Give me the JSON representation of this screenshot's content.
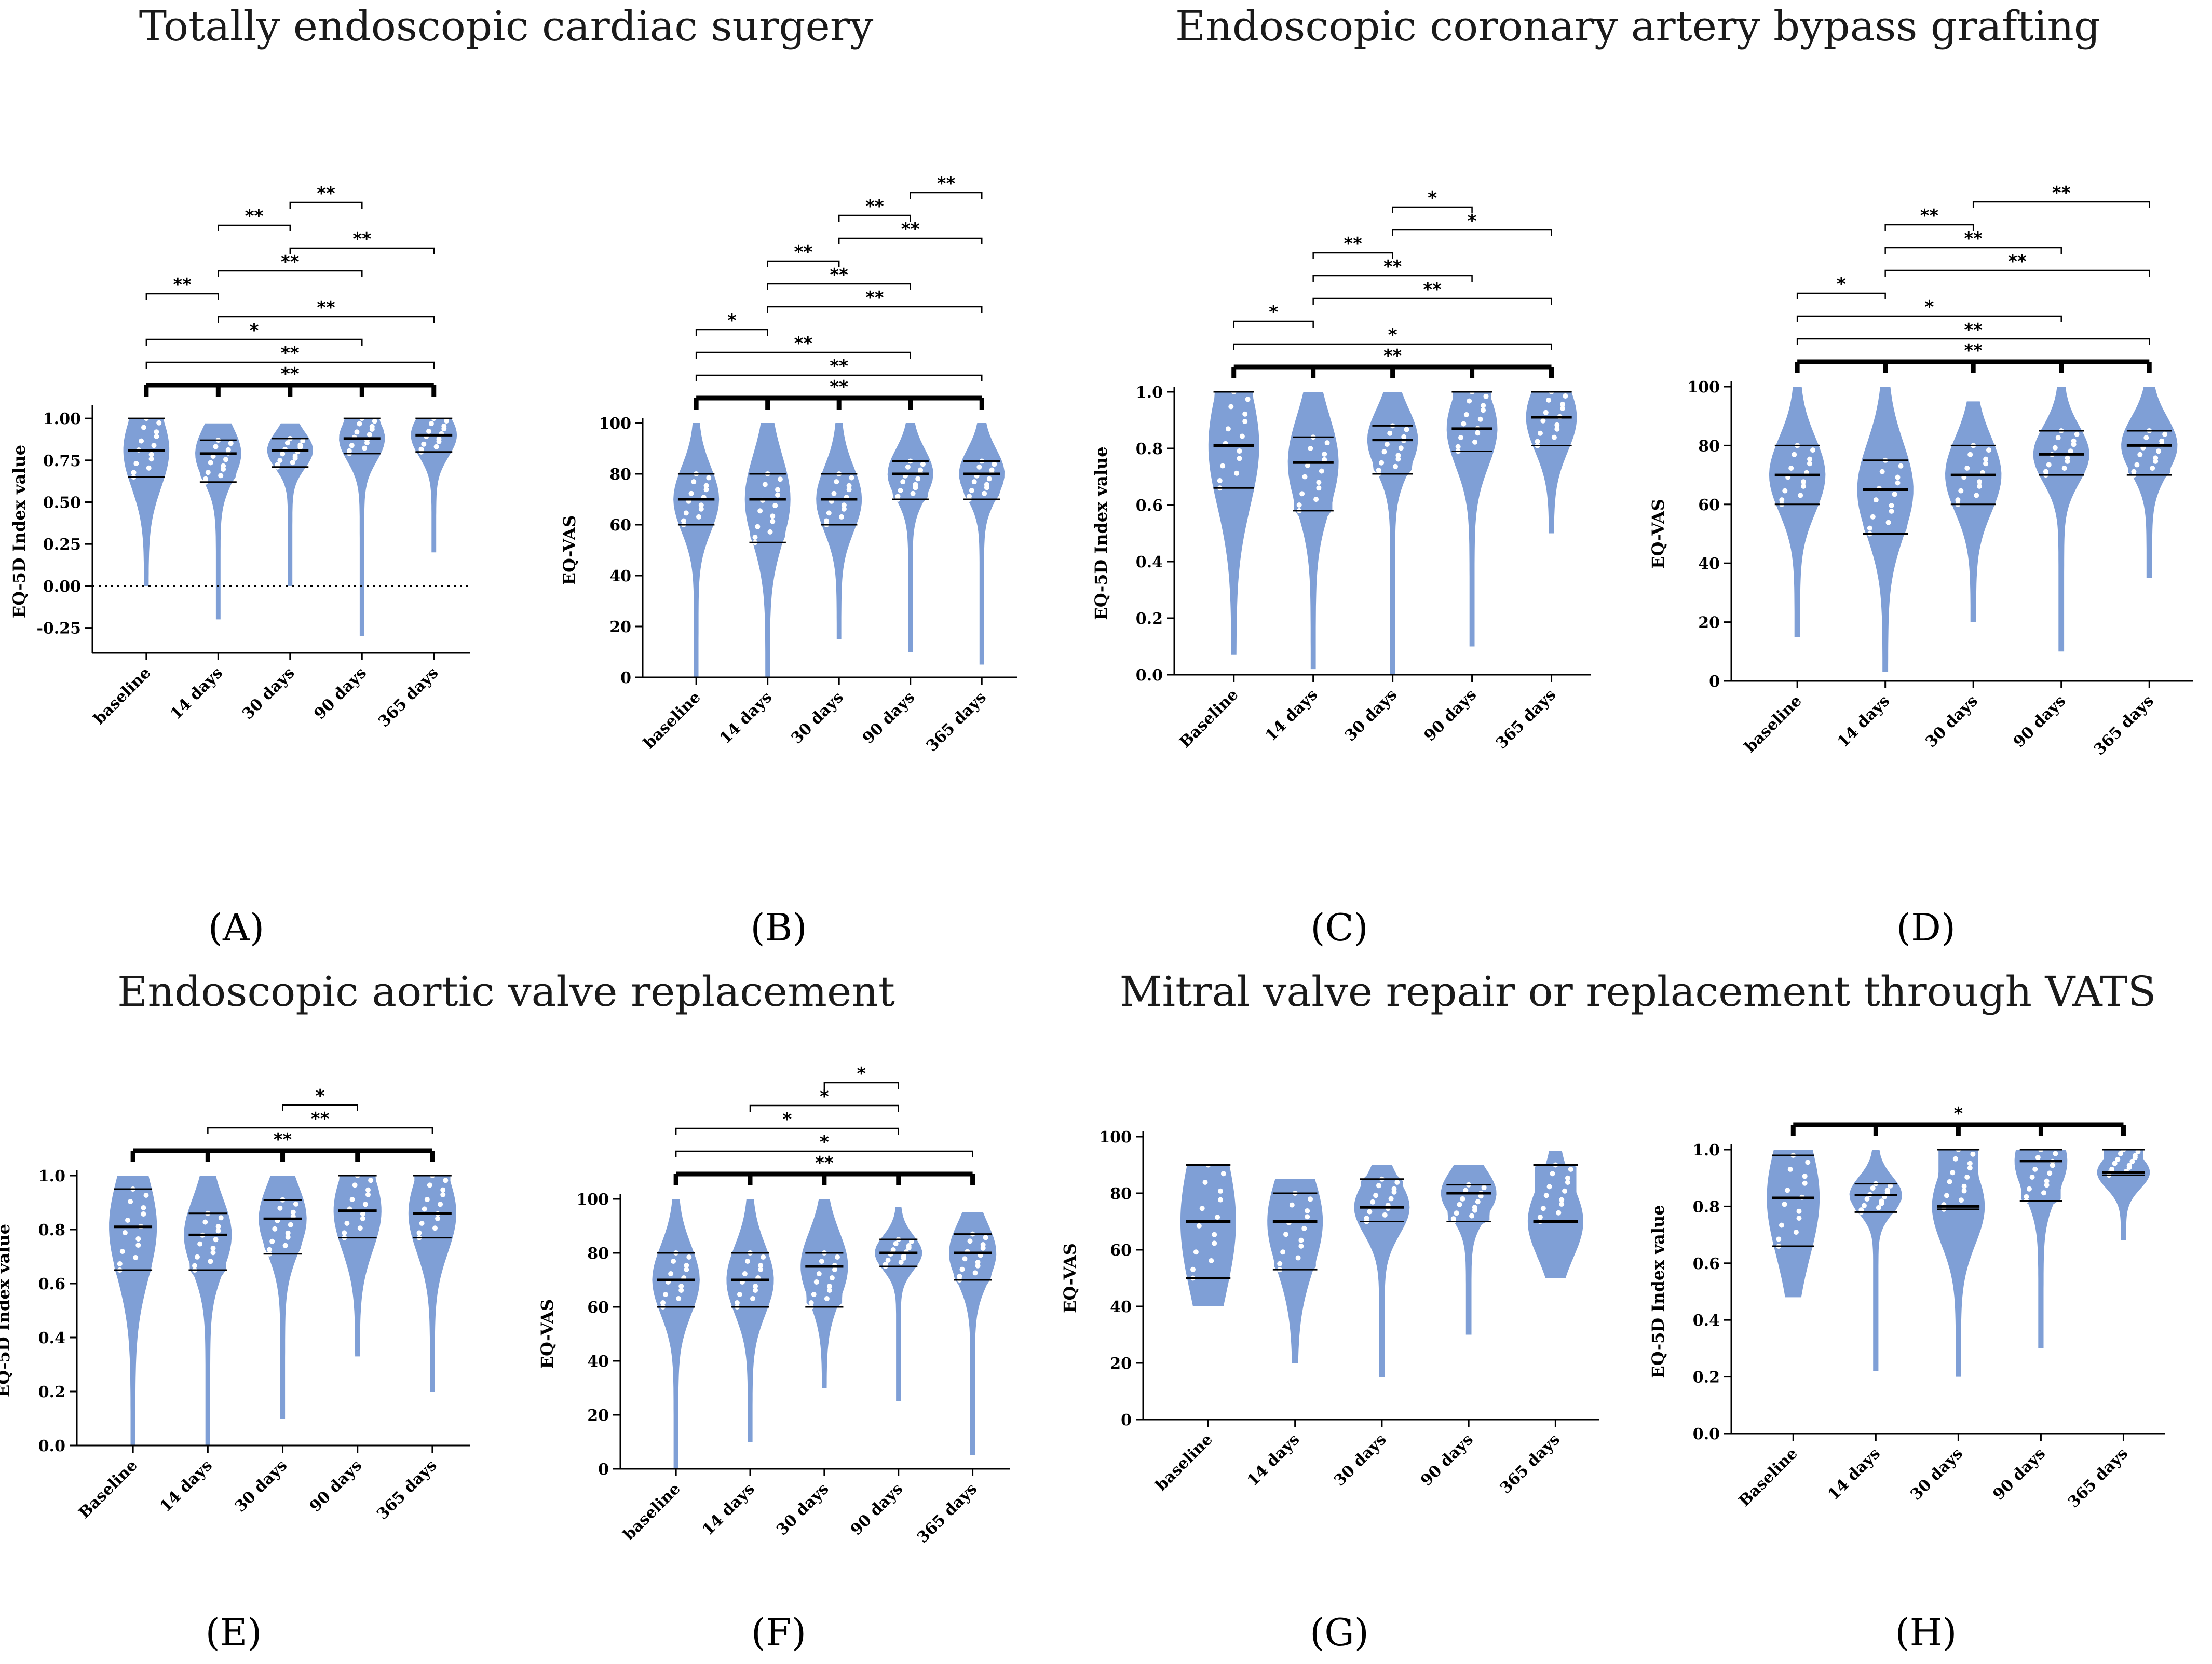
{
  "titles": {
    "left_top": "Totally endoscopic cardiac surgery",
    "right_top": "Endoscopic coronary artery bypass grafting",
    "left_bottom": "Endoscopic aortic valve replacement",
    "right_bottom": "Mitral valve repair or replacement through VATS"
  },
  "colors": {
    "violin": "#7f9fd6",
    "ink": "#000000"
  },
  "chart_data": [
    {
      "panel": "A",
      "panel_label": "(A)",
      "type": "violin",
      "categories": [
        "baseline",
        "14 days",
        "30 days",
        "90 days",
        "365 days"
      ],
      "ylabel": "EQ-5D Index value",
      "ylim": [
        -0.4,
        1.05
      ],
      "yticks": [
        -0.25,
        0.0,
        0.25,
        0.5,
        0.75,
        1.0
      ],
      "ytick_labels": [
        "-0.25",
        "0.00",
        "0.25",
        "0.50",
        "0.75",
        "1.00"
      ],
      "zero_line": true,
      "series": [
        {
          "min": 0.0,
          "max": 1.0,
          "q1": 0.65,
          "median": 0.81,
          "q3": 1.0
        },
        {
          "min": -0.2,
          "max": 0.97,
          "q1": 0.62,
          "median": 0.79,
          "q3": 0.87
        },
        {
          "min": 0.0,
          "max": 0.97,
          "q1": 0.71,
          "median": 0.81,
          "q3": 0.88
        },
        {
          "min": -0.3,
          "max": 1.0,
          "q1": 0.79,
          "median": 0.88,
          "q3": 1.0
        },
        {
          "min": 0.2,
          "max": 1.0,
          "q1": 0.8,
          "median": 0.9,
          "q3": 1.0
        }
      ],
      "comparisons": [
        {
          "from": 2,
          "to": 3,
          "label": "**"
        },
        {
          "from": 1,
          "to": 2,
          "label": "**"
        },
        {
          "from": 2,
          "to": 4,
          "label": "**"
        },
        {
          "from": 1,
          "to": 3,
          "label": "**"
        },
        {
          "from": 0,
          "to": 1,
          "label": "**"
        },
        {
          "from": 1,
          "to": 4,
          "label": "**"
        },
        {
          "from": 0,
          "to": 3,
          "label": "*"
        },
        {
          "from": 0,
          "to": 4,
          "label": "**"
        },
        {
          "group": true,
          "label": "**"
        }
      ]
    },
    {
      "panel": "B",
      "panel_label": "(B)",
      "type": "violin",
      "categories": [
        "baseline",
        "14 days",
        "30 days",
        "90 days",
        "365 days"
      ],
      "ylabel": "EQ-VAS",
      "ylim": [
        0,
        100
      ],
      "yticks": [
        0,
        20,
        40,
        60,
        80,
        100
      ],
      "ytick_labels": [
        "0",
        "20",
        "40",
        "60",
        "80",
        "100"
      ],
      "series": [
        {
          "min": 0,
          "max": 100,
          "q1": 60,
          "median": 70,
          "q3": 80
        },
        {
          "min": 0,
          "max": 100,
          "q1": 53,
          "median": 70,
          "q3": 80
        },
        {
          "min": 15,
          "max": 100,
          "q1": 60,
          "median": 70,
          "q3": 80
        },
        {
          "min": 10,
          "max": 100,
          "q1": 70,
          "median": 80,
          "q3": 85
        },
        {
          "min": 5,
          "max": 100,
          "q1": 70,
          "median": 80,
          "q3": 85
        }
      ],
      "comparisons": [
        {
          "from": 3,
          "to": 4,
          "label": "**"
        },
        {
          "from": 2,
          "to": 3,
          "label": "**"
        },
        {
          "from": 2,
          "to": 4,
          "label": "**"
        },
        {
          "from": 1,
          "to": 2,
          "label": "**"
        },
        {
          "from": 1,
          "to": 3,
          "label": "**"
        },
        {
          "from": 1,
          "to": 4,
          "label": "**"
        },
        {
          "from": 0,
          "to": 1,
          "label": "*"
        },
        {
          "from": 0,
          "to": 3,
          "label": "**"
        },
        {
          "from": 0,
          "to": 4,
          "label": "**"
        },
        {
          "group": true,
          "label": "**"
        }
      ]
    },
    {
      "panel": "C",
      "panel_label": "(C)",
      "type": "violin",
      "categories": [
        "Baseline",
        "14 days",
        "30 days",
        "90 days",
        "365 days"
      ],
      "ylabel": "EQ-5D Index value",
      "ylim": [
        0,
        1.0
      ],
      "yticks": [
        0.0,
        0.2,
        0.4,
        0.6,
        0.8,
        1.0
      ],
      "ytick_labels": [
        "0.0",
        "0.2",
        "0.4",
        "0.6",
        "0.8",
        "1.0"
      ],
      "series": [
        {
          "min": 0.07,
          "max": 1.0,
          "q1": 0.66,
          "median": 0.81,
          "q3": 1.0
        },
        {
          "min": 0.02,
          "max": 1.0,
          "q1": 0.58,
          "median": 0.75,
          "q3": 0.84
        },
        {
          "min": 0.0,
          "max": 1.0,
          "q1": 0.71,
          "median": 0.83,
          "q3": 0.88
        },
        {
          "min": 0.1,
          "max": 1.0,
          "q1": 0.79,
          "median": 0.87,
          "q3": 1.0
        },
        {
          "min": 0.5,
          "max": 1.0,
          "q1": 0.81,
          "median": 0.91,
          "q3": 1.0
        }
      ],
      "comparisons": [
        {
          "from": 2,
          "to": 3,
          "label": "*"
        },
        {
          "from": 2,
          "to": 4,
          "label": "*"
        },
        {
          "from": 1,
          "to": 2,
          "label": "**"
        },
        {
          "from": 1,
          "to": 3,
          "label": "**"
        },
        {
          "from": 1,
          "to": 4,
          "label": "**"
        },
        {
          "from": 0,
          "to": 1,
          "label": "*"
        },
        {
          "from": 0,
          "to": 4,
          "label": "*"
        },
        {
          "group": true,
          "label": "**"
        }
      ]
    },
    {
      "panel": "D",
      "panel_label": "(D)",
      "type": "violin",
      "categories": [
        "baseline",
        "14 days",
        "30 days",
        "90 days",
        "365 days"
      ],
      "ylabel": "EQ-VAS",
      "ylim": [
        0,
        100
      ],
      "yticks": [
        0,
        20,
        40,
        60,
        80,
        100
      ],
      "ytick_labels": [
        "0",
        "20",
        "40",
        "60",
        "80",
        "100"
      ],
      "series": [
        {
          "min": 15,
          "max": 100,
          "q1": 60,
          "median": 70,
          "q3": 80
        },
        {
          "min": 3,
          "max": 100,
          "q1": 50,
          "median": 65,
          "q3": 75
        },
        {
          "min": 20,
          "max": 95,
          "q1": 60,
          "median": 70,
          "q3": 80
        },
        {
          "min": 10,
          "max": 100,
          "q1": 70,
          "median": 77,
          "q3": 85
        },
        {
          "min": 35,
          "max": 100,
          "q1": 70,
          "median": 80,
          "q3": 85
        }
      ],
      "comparisons": [
        {
          "from": 2,
          "to": 4,
          "label": "**"
        },
        {
          "from": 1,
          "to": 2,
          "label": "**"
        },
        {
          "from": 1,
          "to": 3,
          "label": "**"
        },
        {
          "from": 1,
          "to": 4,
          "label": "**"
        },
        {
          "from": 0,
          "to": 1,
          "label": "*"
        },
        {
          "from": 0,
          "to": 3,
          "label": "*"
        },
        {
          "from": 0,
          "to": 4,
          "label": "**"
        },
        {
          "group": true,
          "label": "**"
        }
      ]
    },
    {
      "panel": "E",
      "panel_label": "(E)",
      "type": "violin",
      "categories": [
        "Baseline",
        "14 days",
        "30 days",
        "90 days",
        "365 days"
      ],
      "ylabel": "EQ-5D Index value",
      "ylim": [
        0,
        1.0
      ],
      "yticks": [
        0.0,
        0.2,
        0.4,
        0.6,
        0.8,
        1.0
      ],
      "ytick_labels": [
        "0.0",
        "0.2",
        "0.4",
        "0.6",
        "0.8",
        "1.0"
      ],
      "series": [
        {
          "min": 0.0,
          "max": 1.0,
          "q1": 0.65,
          "median": 0.81,
          "q3": 0.95
        },
        {
          "min": 0.0,
          "max": 1.0,
          "q1": 0.65,
          "median": 0.78,
          "q3": 0.86
        },
        {
          "min": 0.1,
          "max": 1.0,
          "q1": 0.71,
          "median": 0.84,
          "q3": 0.91
        },
        {
          "min": 0.33,
          "max": 1.0,
          "q1": 0.77,
          "median": 0.87,
          "q3": 1.0
        },
        {
          "min": 0.2,
          "max": 1.0,
          "q1": 0.77,
          "median": 0.86,
          "q3": 1.0
        }
      ],
      "comparisons": [
        {
          "from": 2,
          "to": 3,
          "label": "*"
        },
        {
          "from": 1,
          "to": 4,
          "label": "**"
        },
        {
          "group": true,
          "label": "**"
        }
      ]
    },
    {
      "panel": "F",
      "panel_label": "(F)",
      "type": "violin",
      "categories": [
        "baseline",
        "14 days",
        "30 days",
        "90 days",
        "365 days"
      ],
      "ylabel": "EQ-VAS",
      "ylim": [
        0,
        100
      ],
      "yticks": [
        0,
        20,
        40,
        60,
        80,
        100
      ],
      "ytick_labels": [
        "0",
        "20",
        "40",
        "60",
        "80",
        "100"
      ],
      "series": [
        {
          "min": 0,
          "max": 100,
          "q1": 60,
          "median": 70,
          "q3": 80
        },
        {
          "min": 10,
          "max": 100,
          "q1": 60,
          "median": 70,
          "q3": 80
        },
        {
          "min": 30,
          "max": 100,
          "q1": 60,
          "median": 75,
          "q3": 80
        },
        {
          "min": 25,
          "max": 97,
          "q1": 75,
          "median": 80,
          "q3": 85
        },
        {
          "min": 5,
          "max": 95,
          "q1": 70,
          "median": 80,
          "q3": 87
        }
      ],
      "comparisons": [
        {
          "from": 2,
          "to": 3,
          "label": "*"
        },
        {
          "from": 1,
          "to": 3,
          "label": "*"
        },
        {
          "from": 0,
          "to": 3,
          "label": "*"
        },
        {
          "from": 0,
          "to": 4,
          "label": "*"
        },
        {
          "group": true,
          "label": "**"
        }
      ]
    },
    {
      "panel": "G",
      "panel_label": "(G)",
      "type": "violin",
      "categories": [
        "baseline",
        "14 days",
        "30 days",
        "90 days",
        "365 days"
      ],
      "ylabel": "EQ-VAS",
      "ylim": [
        0,
        100
      ],
      "yticks": [
        0,
        20,
        40,
        60,
        80,
        100
      ],
      "ytick_labels": [
        "0",
        "20",
        "40",
        "60",
        "80",
        "100"
      ],
      "series": [
        {
          "min": 40,
          "max": 90,
          "q1": 50,
          "median": 70,
          "q3": 90
        },
        {
          "min": 20,
          "max": 85,
          "q1": 53,
          "median": 70,
          "q3": 80
        },
        {
          "min": 15,
          "max": 90,
          "q1": 70,
          "median": 75,
          "q3": 85
        },
        {
          "min": 30,
          "max": 90,
          "q1": 70,
          "median": 80,
          "q3": 83
        },
        {
          "min": 50,
          "max": 95,
          "q1": 70,
          "median": 70,
          "q3": 90
        }
      ],
      "comparisons": []
    },
    {
      "panel": "H",
      "panel_label": "(H)",
      "type": "violin",
      "categories": [
        "Baseline",
        "14 days",
        "30 days",
        "90 days",
        "365 days"
      ],
      "ylabel": "EQ-5D Index value",
      "ylim": [
        0,
        1.0
      ],
      "yticks": [
        0.0,
        0.2,
        0.4,
        0.6,
        0.8,
        1.0
      ],
      "ytick_labels": [
        "0.0",
        "0.2",
        "0.4",
        "0.6",
        "0.8",
        "1.0"
      ],
      "series": [
        {
          "min": 0.48,
          "max": 1.0,
          "q1": 0.66,
          "median": 0.83,
          "q3": 0.98
        },
        {
          "min": 0.22,
          "max": 1.0,
          "q1": 0.78,
          "median": 0.84,
          "q3": 0.88
        },
        {
          "min": 0.2,
          "max": 1.0,
          "q1": 0.79,
          "median": 0.8,
          "q3": 1.0
        },
        {
          "min": 0.3,
          "max": 1.0,
          "q1": 0.82,
          "median": 0.96,
          "q3": 1.0
        },
        {
          "min": 0.68,
          "max": 1.0,
          "q1": 0.91,
          "median": 0.92,
          "q3": 1.0
        }
      ],
      "comparisons": [
        {
          "group": true,
          "label": "*"
        }
      ]
    }
  ]
}
